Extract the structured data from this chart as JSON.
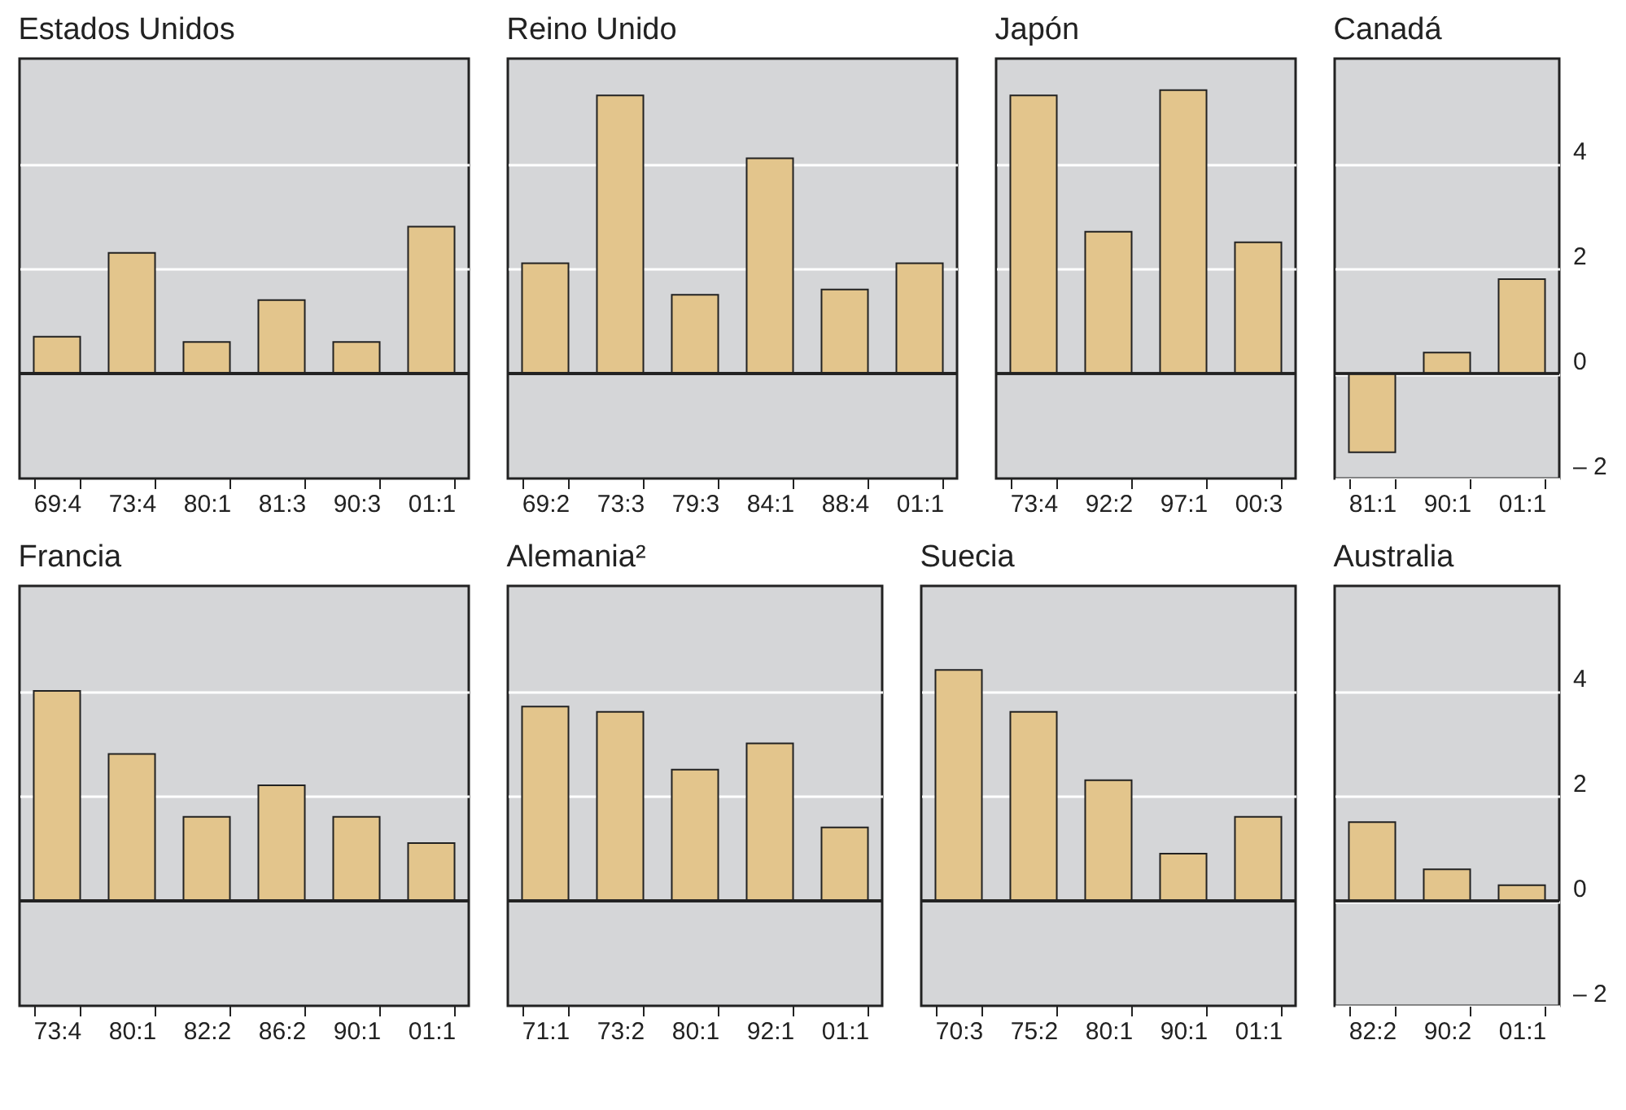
{
  "chart_data": [
    {
      "type": "bar",
      "title": "Estados Unidos",
      "categories": [
        "69:4",
        "73:4",
        "80:1",
        "81:3",
        "90:3",
        "01:1"
      ],
      "values": [
        0.7,
        2.3,
        0.6,
        1.4,
        0.6,
        2.8
      ],
      "color": "#e3c58c",
      "ylim": [
        -2,
        6
      ],
      "yticks": [
        2,
        4
      ],
      "grid": "y",
      "tick_labels": "x"
    },
    {
      "type": "bar",
      "title": "Reino Unido",
      "categories": [
        "69:2",
        "73:3",
        "79:3",
        "84:1",
        "88:4",
        "01:1"
      ],
      "values": [
        2.1,
        5.3,
        1.5,
        4.1,
        1.6,
        2.1
      ],
      "color": "#e3c58c",
      "ylim": [
        -2,
        6
      ],
      "yticks": [
        2,
        4
      ],
      "grid": "y",
      "tick_labels": "x"
    },
    {
      "type": "bar",
      "title": "Japón",
      "categories": [
        "73:4",
        "92:2",
        "97:1",
        "00:3"
      ],
      "values": [
        5.3,
        2.7,
        5.4,
        2.5
      ],
      "color": "#e3c58c",
      "ylim": [
        -2,
        6
      ],
      "yticks": [
        2,
        4
      ],
      "grid": "y",
      "tick_labels": "x"
    },
    {
      "type": "bar",
      "title": "Canadá",
      "categories": [
        "81:1",
        "90:1",
        "01:1"
      ],
      "values": [
        -1.5,
        0.4,
        1.8
      ],
      "color": "#e3c58c",
      "ylim": [
        -2,
        6
      ],
      "yticks": [
        {
          "value": -2,
          "label": "– 2"
        },
        0,
        2,
        4
      ],
      "grid": "y"
    },
    {
      "type": "bar",
      "title": "Francia",
      "categories": [
        "73:4",
        "80:1",
        "82:2",
        "86:2",
        "90:1",
        "01:1"
      ],
      "values": [
        4.0,
        2.8,
        1.6,
        2.2,
        1.6,
        1.1
      ],
      "color": "#e3c58c",
      "ylim": [
        -2,
        6
      ],
      "yticks": [
        2,
        4
      ],
      "grid": "y",
      "tick_labels": "x"
    },
    {
      "type": "bar",
      "title": "Alemania²",
      "categories": [
        "71:1",
        "73:2",
        "80:1",
        "92:1",
        "01:1"
      ],
      "values": [
        3.7,
        3.6,
        2.5,
        3.0,
        1.4
      ],
      "color": "#e3c58c",
      "ylim": [
        -2,
        6
      ],
      "yticks": [
        2,
        4
      ],
      "grid": "y",
      "tick_labels": "x"
    },
    {
      "type": "bar",
      "title": "Suecia",
      "categories": [
        "70:3",
        "75:2",
        "80:1",
        "90:1",
        "01:1"
      ],
      "values": [
        4.4,
        3.6,
        2.3,
        0.9,
        1.6
      ],
      "color": "#e3c58c",
      "ylim": [
        -2,
        6
      ],
      "yticks": [
        2,
        4
      ],
      "grid": "y",
      "tick_labels": "x"
    },
    {
      "type": "bar",
      "title": "Australia",
      "categories": [
        "82:2",
        "90:2",
        "01:1"
      ],
      "values": [
        1.5,
        0.6,
        0.3
      ],
      "color": "#e3c58c",
      "ylim": [
        -2,
        6
      ],
      "yticks": [
        {
          "value": -2,
          "label": "– 2"
        },
        0,
        2,
        4
      ],
      "grid": "y"
    }
  ]
}
